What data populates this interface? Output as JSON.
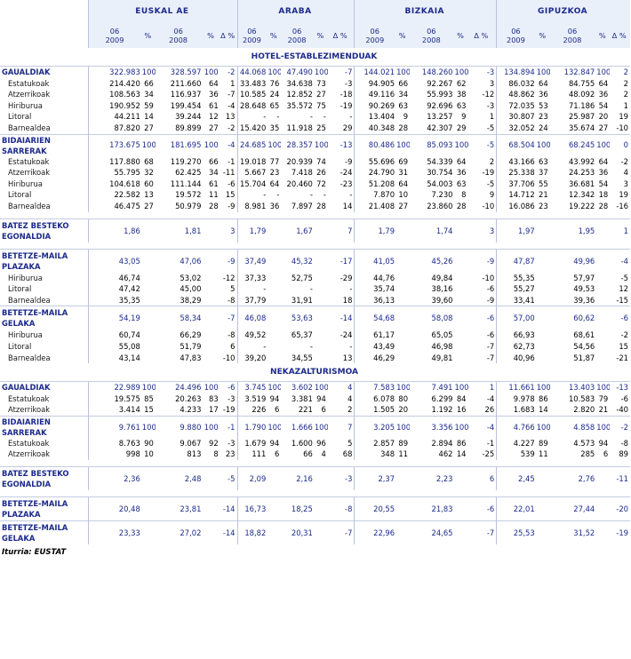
{
  "regions": [
    "EUSKAL AE",
    "ARABA",
    "BIZKAIA",
    "GIPUZKOA"
  ],
  "subheaders": [
    "06\n2009",
    "%",
    "06\n2008",
    "%",
    "Δ %"
  ],
  "sections": [
    {
      "title": "HOTEL-ESTABLEZIMENDUAK",
      "rows": [
        {
          "type": "group",
          "label": "GAUALDIAK",
          "cells": [
            "322.983",
            "100",
            "328.597",
            "100",
            "-2",
            "44.068",
            "100",
            "47.490",
            "100",
            "-7",
            "144.021",
            "100",
            "148.260",
            "100",
            "-3",
            "134.894",
            "100",
            "132.847",
            "100",
            "2"
          ]
        },
        {
          "type": "sub",
          "label": "Estatukoak",
          "cells": [
            "214.420",
            "66",
            "211.660",
            "64",
            "1",
            "33.483",
            "76",
            "34.638",
            "73",
            "-3",
            "94.905",
            "66",
            "92.267",
            "62",
            "3",
            "86.032",
            "64",
            "84.755",
            "64",
            "2"
          ]
        },
        {
          "type": "sub",
          "label": "Atzerrikoak",
          "cells": [
            "108.563",
            "34",
            "116.937",
            "36",
            "-7",
            "10.585",
            "24",
            "12.852",
            "27",
            "-18",
            "49.116",
            "34",
            "55.993",
            "38",
            "-12",
            "48.862",
            "36",
            "48.092",
            "36",
            "2"
          ]
        },
        {
          "type": "sub",
          "label": "Hiriburua",
          "cells": [
            "190.952",
            "59",
            "199.454",
            "61",
            "-4",
            "28.648",
            "65",
            "35.572",
            "75",
            "-19",
            "90.269",
            "63",
            "92.696",
            "63",
            "-3",
            "72.035",
            "53",
            "71.186",
            "54",
            "1"
          ]
        },
        {
          "type": "sub",
          "label": "Litoral",
          "cells": [
            "44.211",
            "14",
            "39.244",
            "12",
            "13",
            "-",
            "-",
            "-",
            "-",
            "-",
            "13.404",
            "9",
            "13.257",
            "9",
            "1",
            "30.807",
            "23",
            "25.987",
            "20",
            "19"
          ]
        },
        {
          "type": "sub",
          "label": "Barnealdea",
          "cells": [
            "87.820",
            "27",
            "89.899",
            "27",
            "-2",
            "15.420",
            "35",
            "11.918",
            "25",
            "29",
            "40.348",
            "28",
            "42.307",
            "29",
            "-5",
            "32.052",
            "24",
            "35.674",
            "27",
            "-10"
          ]
        },
        {
          "type": "group2",
          "label": "BIDAIARIEN SARRERAK",
          "cells": [
            "173.675",
            "100",
            "181.695",
            "100",
            "-4",
            "24.685",
            "100",
            "28.357",
            "100",
            "-13",
            "80.486",
            "100",
            "85.093",
            "100",
            "-5",
            "68.504",
            "100",
            "68.245",
            "100",
            "0"
          ]
        },
        {
          "type": "sub",
          "label": "Estatukoak",
          "cells": [
            "117.880",
            "68",
            "119.270",
            "66",
            "-1",
            "19.018",
            "77",
            "20.939",
            "74",
            "-9",
            "55.696",
            "69",
            "54.339",
            "64",
            "2",
            "43.166",
            "63",
            "43.992",
            "64",
            "-2"
          ]
        },
        {
          "type": "sub",
          "label": "Atzerrikoak",
          "cells": [
            "55.795",
            "32",
            "62.425",
            "34",
            "-11",
            "5.667",
            "23",
            "7.418",
            "26",
            "-24",
            "24.790",
            "31",
            "30.754",
            "36",
            "-19",
            "25.338",
            "37",
            "24.253",
            "36",
            "4"
          ]
        },
        {
          "type": "sub",
          "label": "Hiriburua",
          "cells": [
            "104.618",
            "60",
            "111.144",
            "61",
            "-6",
            "15.704",
            "64",
            "20.460",
            "72",
            "-23",
            "51.208",
            "64",
            "54.003",
            "63",
            "-5",
            "37.706",
            "55",
            "36.681",
            "54",
            "3"
          ]
        },
        {
          "type": "sub",
          "label": "Litoral",
          "cells": [
            "22.582",
            "13",
            "19.572",
            "11",
            "15",
            "-",
            "-",
            "-",
            "-",
            "-",
            "7.870",
            "10",
            "7.230",
            "8",
            "9",
            "14.712",
            "21",
            "12.342",
            "18",
            "19"
          ]
        },
        {
          "type": "sub",
          "label": "Barnealdea",
          "cells": [
            "46.475",
            "27",
            "50.979",
            "28",
            "-9",
            "8.981",
            "36",
            "7.897",
            "28",
            "14",
            "21.408",
            "27",
            "23.860",
            "28",
            "-10",
            "16.086",
            "23",
            "19.222",
            "28",
            "-16"
          ]
        },
        {
          "type": "gap"
        },
        {
          "type": "tall",
          "label": "BATEZ BESTEKO EGONALDIA",
          "cells": [
            "1,86",
            "",
            "1,81",
            "",
            "3",
            "1,79",
            "",
            "1,67",
            "",
            "7",
            "1,79",
            "",
            "1,74",
            "",
            "3",
            "1,97",
            "",
            "1,95",
            "",
            "1"
          ]
        },
        {
          "type": "gap"
        },
        {
          "type": "tall",
          "label": "BETETZE-MAILA PLAZAKA",
          "cells": [
            "43,05",
            "",
            "47,06",
            "",
            "-9",
            "37,49",
            "",
            "45,32",
            "",
            "-17",
            "41,05",
            "",
            "45,26",
            "",
            "-9",
            "47,87",
            "",
            "49,96",
            "",
            "-4"
          ]
        },
        {
          "type": "sub",
          "label": "Hiriburua",
          "cells": [
            "46,74",
            "",
            "53,02",
            "",
            "-12",
            "37,33",
            "",
            "52,75",
            "",
            "-29",
            "44,76",
            "",
            "49,84",
            "",
            "-10",
            "55,35",
            "",
            "57,97",
            "",
            "-5"
          ]
        },
        {
          "type": "sub",
          "label": "Litoral",
          "cells": [
            "47,42",
            "",
            "45,00",
            "",
            "5",
            "-",
            "",
            "-",
            "",
            "-",
            "35,74",
            "",
            "38,16",
            "",
            "-6",
            "55,27",
            "",
            "49,53",
            "",
            "12"
          ]
        },
        {
          "type": "sub",
          "label": "Barnealdea",
          "cells": [
            "35,35",
            "",
            "38,29",
            "",
            "-8",
            "37,79",
            "",
            "31,91",
            "",
            "18",
            "36,13",
            "",
            "39,60",
            "",
            "-9",
            "33,41",
            "",
            "39,36",
            "",
            "-15"
          ]
        },
        {
          "type": "tall",
          "label": "BETETZE-MAILA GELAKA",
          "cells": [
            "54,19",
            "",
            "58,34",
            "",
            "-7",
            "46,08",
            "",
            "53,63",
            "",
            "-14",
            "54,68",
            "",
            "58,08",
            "",
            "-6",
            "57,00",
            "",
            "60,62",
            "",
            "-6"
          ]
        },
        {
          "type": "sub",
          "label": "Hiriburua",
          "cells": [
            "60,74",
            "",
            "66,29",
            "",
            "-8",
            "49,52",
            "",
            "65,37",
            "",
            "-24",
            "61,17",
            "",
            "65,05",
            "",
            "-6",
            "66,93",
            "",
            "68,61",
            "",
            "-2"
          ]
        },
        {
          "type": "sub",
          "label": "Litoral",
          "cells": [
            "55,08",
            "",
            "51,79",
            "",
            "6",
            "-",
            "",
            "-",
            "",
            "-",
            "43,49",
            "",
            "46,98",
            "",
            "-7",
            "62,73",
            "",
            "54,56",
            "",
            "15"
          ]
        },
        {
          "type": "sub",
          "label": "Barnealdea",
          "cells": [
            "43,14",
            "",
            "47,83",
            "",
            "-10",
            "39,20",
            "",
            "34,55",
            "",
            "13",
            "46,29",
            "",
            "49,81",
            "",
            "-7",
            "40,96",
            "",
            "51,87",
            "",
            "-21"
          ]
        }
      ]
    },
    {
      "title": "NEKAZALTURISMOA",
      "rows": [
        {
          "type": "group",
          "label": "GAUALDIAK",
          "cells": [
            "22.989",
            "100",
            "24.496",
            "100",
            "-6",
            "3.745",
            "100",
            "3.602",
            "100",
            "4",
            "7.583",
            "100",
            "7.491",
            "100",
            "1",
            "11.661",
            "100",
            "13.403",
            "100",
            "-13"
          ]
        },
        {
          "type": "sub",
          "label": "Estatukoak",
          "cells": [
            "19.575",
            "85",
            "20.263",
            "83",
            "-3",
            "3.519",
            "94",
            "3.381",
            "94",
            "4",
            "6.078",
            "80",
            "6.299",
            "84",
            "-4",
            "9.978",
            "86",
            "10.583",
            "79",
            "-6"
          ]
        },
        {
          "type": "sub",
          "label": "Atzerrikoak",
          "cells": [
            "3.414",
            "15",
            "4.233",
            "17",
            "-19",
            "226",
            "6",
            "221",
            "6",
            "2",
            "1.505",
            "20",
            "1.192",
            "16",
            "26",
            "1.683",
            "14",
            "2.820",
            "21",
            "-40"
          ]
        },
        {
          "type": "group2",
          "label": "BIDAIARIEN SARRERAK",
          "cells": [
            "9.761",
            "100",
            "9.880",
            "100",
            "-1",
            "1.790",
            "100",
            "1.666",
            "100",
            "7",
            "3.205",
            "100",
            "3.356",
            "100",
            "-4",
            "4.766",
            "100",
            "4.858",
            "100",
            "-2"
          ]
        },
        {
          "type": "sub",
          "label": "Estatukoak",
          "cells": [
            "8.763",
            "90",
            "9.067",
            "92",
            "-3",
            "1.679",
            "94",
            "1.600",
            "96",
            "5",
            "2.857",
            "89",
            "2.894",
            "86",
            "-1",
            "4.227",
            "89",
            "4.573",
            "94",
            "-8"
          ]
        },
        {
          "type": "sub",
          "label": "Atzerrikoak",
          "cells": [
            "998",
            "10",
            "813",
            "8",
            "23",
            "111",
            "6",
            "66",
            "4",
            "68",
            "348",
            "11",
            "462",
            "14",
            "-25",
            "539",
            "11",
            "285",
            "6",
            "89"
          ]
        },
        {
          "type": "gap"
        },
        {
          "type": "tall",
          "label": "BATEZ BESTEKO EGONALDIA",
          "cells": [
            "2,36",
            "",
            "2,48",
            "",
            "-5",
            "2,09",
            "",
            "2,16",
            "",
            "-3",
            "2,37",
            "",
            "2,23",
            "",
            "6",
            "2,45",
            "",
            "2,76",
            "",
            "-11"
          ]
        },
        {
          "type": "gap"
        },
        {
          "type": "tall",
          "label": "BETETZE-MAILA PLAZAKA",
          "cells": [
            "20,48",
            "",
            "23,81",
            "",
            "-14",
            "16,73",
            "",
            "18,25",
            "",
            "-8",
            "20,55",
            "",
            "21,83",
            "",
            "-6",
            "22,01",
            "",
            "27,44",
            "",
            "-20"
          ]
        },
        {
          "type": "tall",
          "label": "BETETZE-MAILA GELAKA",
          "cells": [
            "23,33",
            "",
            "27,02",
            "",
            "-14",
            "18,82",
            "",
            "20,31",
            "",
            "-7",
            "22,96",
            "",
            "24,65",
            "",
            "-7",
            "25,53",
            "",
            "31,52",
            "",
            "-19"
          ]
        }
      ]
    }
  ],
  "source": "Iturria: EUSTAT"
}
